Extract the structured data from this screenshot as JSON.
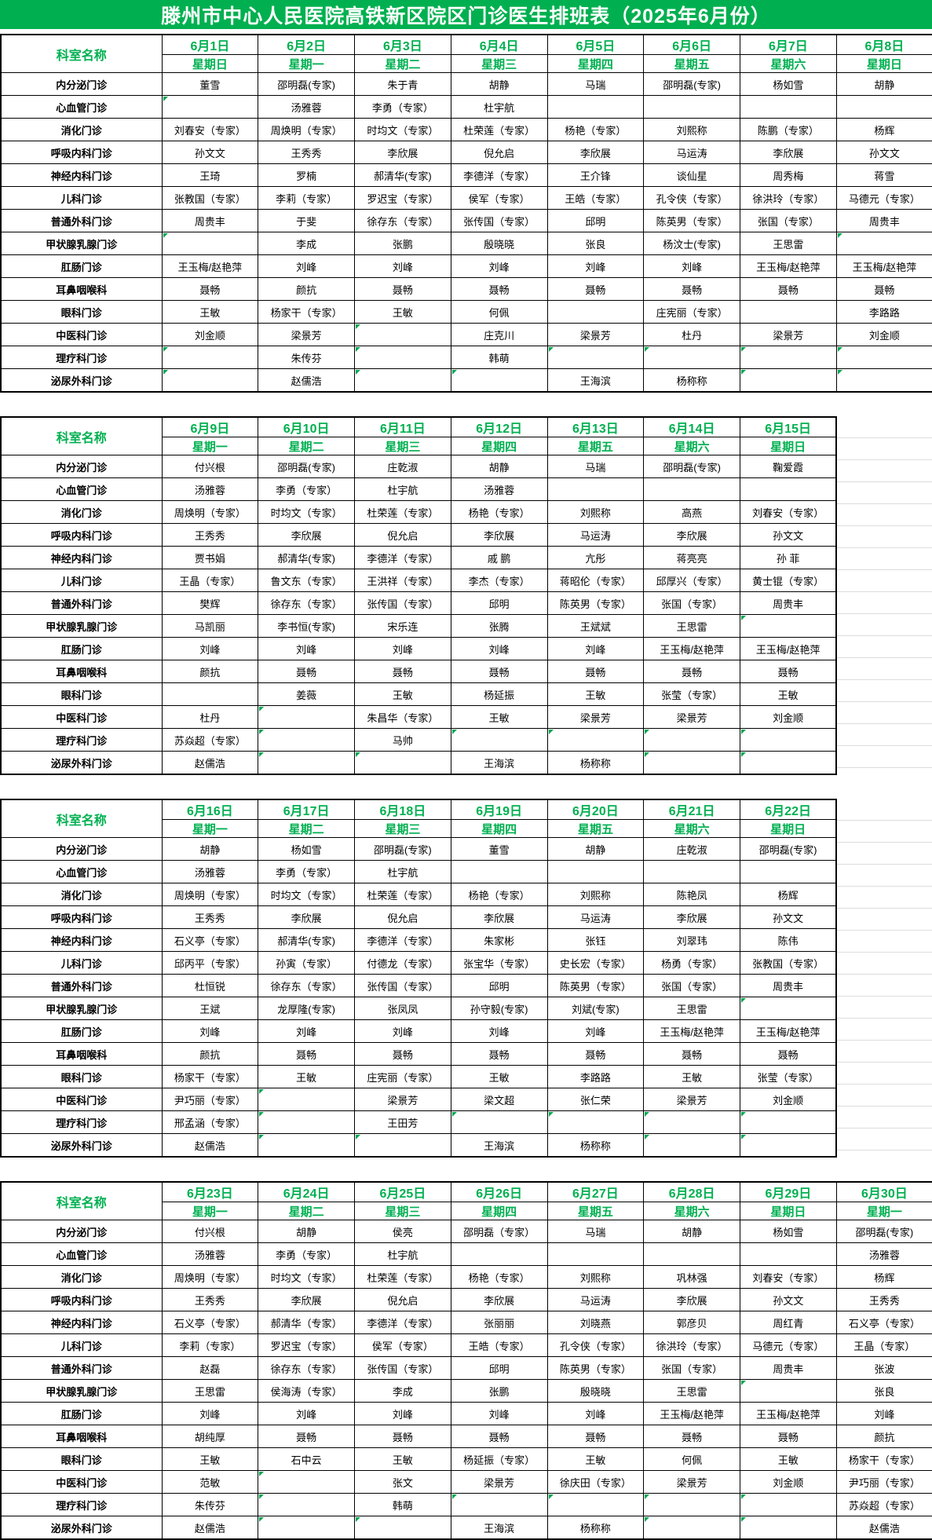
{
  "title": "滕州市中心人民医院高铁新区院区门诊医生排班表（2025年6月份）",
  "corner_label": "科室名称",
  "colors": {
    "title_bar_green": "#00B050",
    "header_text_green": "#00B050",
    "comment_triangle_green": "#00A651",
    "cell_text": "#000000",
    "grid_border": "#000000",
    "faint_gridline": "#dcdcdc"
  },
  "tables": [
    {
      "dates": [
        "6月1日",
        "6月2日",
        "6月3日",
        "6月4日",
        "6月5日",
        "6月6日",
        "6月7日",
        "6月8日"
      ],
      "weekdays": [
        "星期日",
        "星期一",
        "星期二",
        "星期三",
        "星期四",
        "星期五",
        "星期六",
        "星期日"
      ],
      "rows": [
        {
          "dept": "内分泌门诊",
          "cells": [
            "董雪",
            "邵明磊(专家)",
            "朱于青",
            "胡静",
            "马瑞",
            "邵明磊(专家)",
            "杨如雪",
            "胡静"
          ]
        },
        {
          "dept": "心血管门诊",
          "cells": [
            "",
            "汤雅蓉",
            "李勇（专家）",
            "杜宇航",
            "",
            "",
            "",
            ""
          ]
        },
        {
          "dept": "消化门诊",
          "cells": [
            "刘春安（专家）",
            "周焕明（专家）",
            "时均文（专家）",
            "杜荣莲（专家）",
            "杨艳（专家）",
            "刘熙称",
            "陈鹏（专家）",
            "杨辉"
          ]
        },
        {
          "dept": "呼吸内科门诊",
          "cells": [
            "孙文文",
            "王秀秀",
            "李欣展",
            "倪允启",
            "李欣展",
            "马运涛",
            "李欣展",
            "孙文文"
          ]
        },
        {
          "dept": "神经内科门诊",
          "cells": [
            "王琦",
            "罗楠",
            "郝清华(专家)",
            "李德洋（专家）",
            "王介锋",
            "谈仙星",
            "周秀梅",
            "蒋雪"
          ]
        },
        {
          "dept": "儿科门诊",
          "cells": [
            "张教国（专家）",
            "李莉（专家）",
            "罗迟宝（专家）",
            "侯军（专家）",
            "王皓（专家）",
            "孔令侠（专家）",
            "徐洪玲（专家）",
            "马德元（专家）"
          ]
        },
        {
          "dept": "普通外科门诊",
          "cells": [
            "周贵丰",
            "于斐",
            "徐存东（专家）",
            "张传国（专家）",
            "邱明",
            "陈英男（专家）",
            "张国（专家）",
            "周贵丰"
          ]
        },
        {
          "dept": "甲状腺乳腺门诊",
          "cells": [
            "",
            "李成",
            "张鹏",
            "殷晓晓",
            "张良",
            "杨汶士(专家)",
            "王思雷",
            ""
          ]
        },
        {
          "dept": "肛肠门诊",
          "cells": [
            "王玉梅/赵艳萍",
            "刘峰",
            "刘峰",
            "刘峰",
            "刘峰",
            "刘峰",
            "王玉梅/赵艳萍",
            "王玉梅/赵艳萍"
          ]
        },
        {
          "dept": "耳鼻咽喉科",
          "cells": [
            "聂畅",
            "颜抗",
            "聂畅",
            "聂畅",
            "聂畅",
            "聂畅",
            "聂畅",
            "聂畅"
          ]
        },
        {
          "dept": "眼科门诊",
          "cells": [
            "王敏",
            "杨家干（专家）",
            "王敏",
            "何佩",
            "",
            "庄宪丽（专家）",
            "",
            "李路路"
          ]
        },
        {
          "dept": "中医科门诊",
          "cells": [
            "刘金顺",
            "梁景芳",
            "",
            "庄克川",
            "梁景芳",
            "杜丹",
            "梁景芳",
            "刘金顺"
          ]
        },
        {
          "dept": "理疗科门诊",
          "cells": [
            "",
            "朱传芬",
            "",
            "韩萌",
            "",
            "",
            "",
            ""
          ]
        },
        {
          "dept": "泌尿外科门诊",
          "cells": [
            "",
            "赵儒浩",
            "",
            "",
            "王海滨",
            "杨称称",
            "",
            ""
          ]
        }
      ],
      "triangles": [
        [
          1,
          0
        ],
        [
          7,
          0
        ],
        [
          7,
          7
        ],
        [
          11,
          2
        ],
        [
          12,
          0
        ],
        [
          12,
          2
        ],
        [
          12,
          4
        ],
        [
          12,
          5
        ],
        [
          12,
          6
        ],
        [
          12,
          7
        ],
        [
          13,
          0
        ],
        [
          13,
          2
        ],
        [
          13,
          3
        ],
        [
          13,
          6
        ],
        [
          13,
          7
        ]
      ]
    },
    {
      "dates": [
        "6月9日",
        "6月10日",
        "6月11日",
        "6月12日",
        "6月13日",
        "6月14日",
        "6月15日"
      ],
      "weekdays": [
        "星期一",
        "星期二",
        "星期三",
        "星期四",
        "星期五",
        "星期六",
        "星期日"
      ],
      "rows": [
        {
          "dept": "内分泌门诊",
          "cells": [
            "付兴根",
            "邵明磊(专家)",
            "庄乾淑",
            "胡静",
            "马瑞",
            "邵明磊(专家)",
            "鞠爱霞"
          ]
        },
        {
          "dept": "心血管门诊",
          "cells": [
            "汤雅蓉",
            "李勇（专家）",
            "杜宇航",
            "汤雅蓉",
            "",
            "",
            ""
          ]
        },
        {
          "dept": "消化门诊",
          "cells": [
            "周焕明（专家）",
            "时均文（专家）",
            "杜荣莲（专家）",
            "杨艳（专家）",
            "刘熙称",
            "高燕",
            "刘春安（专家）"
          ]
        },
        {
          "dept": "呼吸内科门诊",
          "cells": [
            "王秀秀",
            "李欣展",
            "倪允启",
            "李欣展",
            "马运涛",
            "李欣展",
            "孙文文"
          ]
        },
        {
          "dept": "神经内科门诊",
          "cells": [
            "贾书娟",
            "郝清华(专家)",
            "李德洋（专家）",
            "戚 鹏",
            "亢彤",
            "蒋亮亮",
            "孙 菲"
          ]
        },
        {
          "dept": "儿科门诊",
          "cells": [
            "王晶（专家）",
            "鲁文东（专家）",
            "王洪祥（专家）",
            "李杰（专家）",
            "蒋昭伦（专家）",
            "邱厚兴（专家）",
            "黄士锟（专家）"
          ]
        },
        {
          "dept": "普通外科门诊",
          "cells": [
            "樊辉",
            "徐存东（专家）",
            "张传国（专家）",
            "邱明",
            "陈英男（专家）",
            "张国（专家）",
            "周贵丰"
          ]
        },
        {
          "dept": "甲状腺乳腺门诊",
          "cells": [
            "马凯丽",
            "李书恒(专家)",
            "宋乐连",
            "张腾",
            "王斌斌",
            "王思雷",
            ""
          ]
        },
        {
          "dept": "肛肠门诊",
          "cells": [
            "刘峰",
            "刘峰",
            "刘峰",
            "刘峰",
            "刘峰",
            "王玉梅/赵艳萍",
            "王玉梅/赵艳萍"
          ]
        },
        {
          "dept": "耳鼻咽喉科",
          "cells": [
            "颜抗",
            "聂畅",
            "聂畅",
            "聂畅",
            "聂畅",
            "聂畅",
            "聂畅"
          ]
        },
        {
          "dept": "眼科门诊",
          "cells": [
            "",
            "姜薇",
            "王敏",
            "杨延振",
            "王敏",
            "张莹（专家）",
            "王敏"
          ]
        },
        {
          "dept": "中医科门诊",
          "cells": [
            "杜丹",
            "",
            "朱昌华（专家）",
            "王敏",
            "梁景芳",
            "梁景芳",
            "刘金顺"
          ]
        },
        {
          "dept": "理疗科门诊",
          "cells": [
            "苏焱超（专家）",
            "",
            "马帅",
            "",
            "",
            "",
            ""
          ]
        },
        {
          "dept": "泌尿外科门诊",
          "cells": [
            "赵儒浩",
            "",
            "",
            "王海滨",
            "杨称称",
            "",
            ""
          ]
        }
      ],
      "triangles": [
        [
          7,
          6
        ],
        [
          11,
          1
        ],
        [
          12,
          1
        ],
        [
          12,
          3
        ],
        [
          12,
          4
        ],
        [
          12,
          5
        ],
        [
          12,
          6
        ],
        [
          13,
          1
        ],
        [
          13,
          2
        ],
        [
          13,
          5
        ],
        [
          13,
          6
        ]
      ]
    },
    {
      "dates": [
        "6月16日",
        "6月17日",
        "6月18日",
        "6月19日",
        "6月20日",
        "6月21日",
        "6月22日"
      ],
      "weekdays": [
        "星期一",
        "星期二",
        "星期三",
        "星期四",
        "星期五",
        "星期六",
        "星期日"
      ],
      "rows": [
        {
          "dept": "内分泌门诊",
          "cells": [
            "胡静",
            "杨如雪",
            "邵明磊(专家)",
            "董雪",
            "胡静",
            "庄乾淑",
            "邵明磊(专家)"
          ]
        },
        {
          "dept": "心血管门诊",
          "cells": [
            "汤雅蓉",
            "李勇（专家）",
            "杜宇航",
            "",
            "",
            "",
            ""
          ]
        },
        {
          "dept": "消化门诊",
          "cells": [
            "周焕明（专家）",
            "时均文（专家）",
            "杜荣莲（专家）",
            "杨艳（专家）",
            "刘熙称",
            "陈艳凤",
            "杨辉"
          ]
        },
        {
          "dept": "呼吸内科门诊",
          "cells": [
            "王秀秀",
            "李欣展",
            "倪允启",
            "李欣展",
            "马运涛",
            "李欣展",
            "孙文文"
          ]
        },
        {
          "dept": "神经内科门诊",
          "cells": [
            "石义亭（专家）",
            "郝清华(专家)",
            "李德洋（专家）",
            "朱家彬",
            "张钰",
            "刘翠玮",
            "陈伟"
          ]
        },
        {
          "dept": "儿科门诊",
          "cells": [
            "邱丙平（专家）",
            "孙寅（专家）",
            "付德龙（专家）",
            "张宝华（专家）",
            "史长宏（专家）",
            "杨勇（专家）",
            "张教国（专家）"
          ]
        },
        {
          "dept": "普通外科门诊",
          "cells": [
            "杜恒锐",
            "徐存东（专家）",
            "张传国（专家）",
            "邱明",
            "陈英男（专家）",
            "张国（专家）",
            "周贵丰"
          ]
        },
        {
          "dept": "甲状腺乳腺门诊",
          "cells": [
            "王斌",
            "龙厚隆(专家)",
            "张凤凤",
            "孙守毅(专家)",
            "刘斌(专家)",
            "王思雷",
            ""
          ]
        },
        {
          "dept": "肛肠门诊",
          "cells": [
            "刘峰",
            "刘峰",
            "刘峰",
            "刘峰",
            "刘峰",
            "王玉梅/赵艳萍",
            "王玉梅/赵艳萍"
          ]
        },
        {
          "dept": "耳鼻咽喉科",
          "cells": [
            "颜抗",
            "聂畅",
            "聂畅",
            "聂畅",
            "聂畅",
            "聂畅",
            "聂畅"
          ]
        },
        {
          "dept": "眼科门诊",
          "cells": [
            "杨家干（专家）",
            "王敏",
            "庄宪丽（专家）",
            "王敏",
            "李路路",
            "王敏",
            "张莹（专家）"
          ]
        },
        {
          "dept": "中医科门诊",
          "cells": [
            "尹巧丽（专家）",
            "",
            "梁景芳",
            "梁文超",
            "张仁荣",
            "梁景芳",
            "刘金顺"
          ]
        },
        {
          "dept": "理疗科门诊",
          "cells": [
            "邢孟涵（专家）",
            "",
            "王田芳",
            "",
            "",
            "",
            ""
          ]
        },
        {
          "dept": "泌尿外科门诊",
          "cells": [
            "赵儒浩",
            "",
            "",
            "王海滨",
            "杨称称",
            "",
            ""
          ]
        }
      ],
      "triangles": [
        [
          7,
          6
        ],
        [
          11,
          1
        ],
        [
          12,
          1
        ],
        [
          12,
          3
        ],
        [
          12,
          4
        ],
        [
          12,
          5
        ],
        [
          12,
          6
        ],
        [
          13,
          1
        ],
        [
          13,
          2
        ],
        [
          13,
          5
        ],
        [
          13,
          6
        ]
      ]
    },
    {
      "dates": [
        "6月23日",
        "6月24日",
        "6月25日",
        "6月26日",
        "6月27日",
        "6月28日",
        "6月29日",
        "6月30日"
      ],
      "weekdays": [
        "星期一",
        "星期二",
        "星期三",
        "星期四",
        "星期五",
        "星期六",
        "星期日",
        "星期一"
      ],
      "rows": [
        {
          "dept": "内分泌门诊",
          "cells": [
            "付兴根",
            "胡静",
            "侯亮",
            "邵明磊（专家）",
            "马瑞",
            "胡静",
            "杨如雪",
            "邵明磊(专家)"
          ]
        },
        {
          "dept": "心血管门诊",
          "cells": [
            "汤雅蓉",
            "李勇（专家）",
            "杜宇航",
            "",
            "",
            "",
            "",
            "汤雅蓉"
          ]
        },
        {
          "dept": "消化门诊",
          "cells": [
            "周焕明（专家）",
            "时均文（专家）",
            "杜荣莲（专家）",
            "杨艳（专家）",
            "刘熙称",
            "巩林强",
            "刘春安（专家）",
            "杨辉"
          ]
        },
        {
          "dept": "呼吸内科门诊",
          "cells": [
            "王秀秀",
            "李欣展",
            "倪允启",
            "李欣展",
            "马运涛",
            "李欣展",
            "孙文文",
            "王秀秀"
          ]
        },
        {
          "dept": "神经内科门诊",
          "cells": [
            "石义亭（专家）",
            "郝清华（专家）",
            "李德洋（专家）",
            "张丽丽",
            "刘晓燕",
            "郭彦贝",
            "周红青",
            "石义亭（专家）"
          ]
        },
        {
          "dept": "儿科门诊",
          "cells": [
            "李莉（专家）",
            "罗迟宝（专家）",
            "侯军（专家）",
            "王皓（专家）",
            "孔令侠（专家）",
            "徐洪玲（专家）",
            "马德元（专家）",
            "王晶（专家）"
          ]
        },
        {
          "dept": "普通外科门诊",
          "cells": [
            "赵磊",
            "徐存东（专家）",
            "张传国（专家）",
            "邱明",
            "陈英男（专家）",
            "张国（专家）",
            "周贵丰",
            "张波"
          ]
        },
        {
          "dept": "甲状腺乳腺门诊",
          "cells": [
            "王思雷",
            "侯海涛（专家）",
            "李成",
            "张鹏",
            "殷晓晓",
            "王思雷",
            "",
            "张良"
          ]
        },
        {
          "dept": "肛肠门诊",
          "cells": [
            "刘峰",
            "刘峰",
            "刘峰",
            "刘峰",
            "刘峰",
            "王玉梅/赵艳萍",
            "王玉梅/赵艳萍",
            "刘峰"
          ]
        },
        {
          "dept": "耳鼻咽喉科",
          "cells": [
            "胡纯厚",
            "聂畅",
            "聂畅",
            "聂畅",
            "聂畅",
            "聂畅",
            "聂畅",
            "颜抗"
          ]
        },
        {
          "dept": "眼科门诊",
          "cells": [
            "王敏",
            "石中云",
            "王敏",
            "杨延振（专家）",
            "王敏",
            "何佩",
            "王敏",
            "杨家干（专家）"
          ]
        },
        {
          "dept": "中医科门诊",
          "cells": [
            "范敏",
            "",
            "张文",
            "梁景芳",
            "徐庆田（专家）",
            "梁景芳",
            "刘金顺",
            "尹巧丽（专家）"
          ]
        },
        {
          "dept": "理疗科门诊",
          "cells": [
            "朱传芬",
            "",
            "韩萌",
            "",
            "",
            "",
            "",
            "苏焱超（专家）"
          ]
        },
        {
          "dept": "泌尿外科门诊",
          "cells": [
            "赵儒浩",
            "",
            "",
            "王海滨",
            "杨称称",
            "",
            "",
            "赵儒浩"
          ]
        }
      ],
      "triangles": [
        [
          7,
          6
        ],
        [
          11,
          1
        ],
        [
          12,
          1
        ],
        [
          12,
          3
        ],
        [
          12,
          4
        ],
        [
          12,
          5
        ],
        [
          12,
          6
        ],
        [
          13,
          1
        ],
        [
          13,
          2
        ],
        [
          13,
          5
        ],
        [
          13,
          6
        ]
      ]
    }
  ]
}
